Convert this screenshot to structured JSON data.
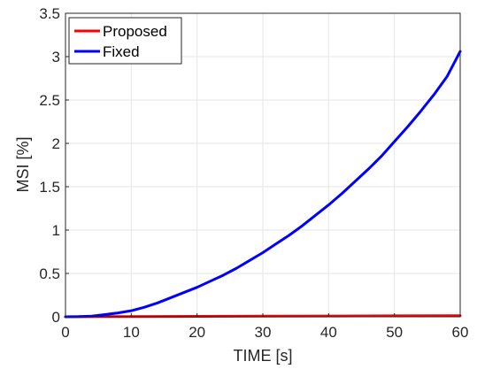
{
  "chart_data": {
    "type": "line",
    "xlabel": "TIME [s]",
    "ylabel": "MSI [%]",
    "xlim": [
      0,
      60
    ],
    "ylim": [
      0,
      3.5
    ],
    "xticks": [
      0,
      10,
      20,
      30,
      40,
      50,
      60
    ],
    "yticks": [
      0,
      0.5,
      1,
      1.5,
      2,
      2.5,
      3,
      3.5
    ],
    "xtick_labels": [
      "0",
      "10",
      "20",
      "30",
      "40",
      "50",
      "60"
    ],
    "ytick_labels": [
      "0",
      "0.5",
      "1",
      "1.5",
      "2",
      "2.5",
      "3",
      "3.5"
    ],
    "grid": true,
    "legend_position": "top-left",
    "series": [
      {
        "name": "Proposed",
        "color": "#ff0000",
        "x": [
          0,
          10,
          20,
          30,
          40,
          50,
          60
        ],
        "y": [
          0,
          0.003,
          0.005,
          0.007,
          0.009,
          0.011,
          0.013
        ]
      },
      {
        "name": "Fixed",
        "color": "#0000ff",
        "x": [
          0,
          2,
          4,
          6,
          8,
          10,
          12,
          14,
          16,
          18,
          20,
          22,
          24,
          26,
          28,
          30,
          32,
          34,
          36,
          38,
          40,
          42,
          44,
          46,
          48,
          50,
          52,
          54,
          56,
          58,
          60
        ],
        "y": [
          0,
          0.002,
          0.008,
          0.025,
          0.045,
          0.07,
          0.11,
          0.16,
          0.22,
          0.28,
          0.34,
          0.41,
          0.48,
          0.56,
          0.65,
          0.74,
          0.84,
          0.94,
          1.05,
          1.17,
          1.29,
          1.42,
          1.56,
          1.7,
          1.85,
          2.02,
          2.19,
          2.37,
          2.56,
          2.77,
          3.06
        ]
      }
    ]
  }
}
